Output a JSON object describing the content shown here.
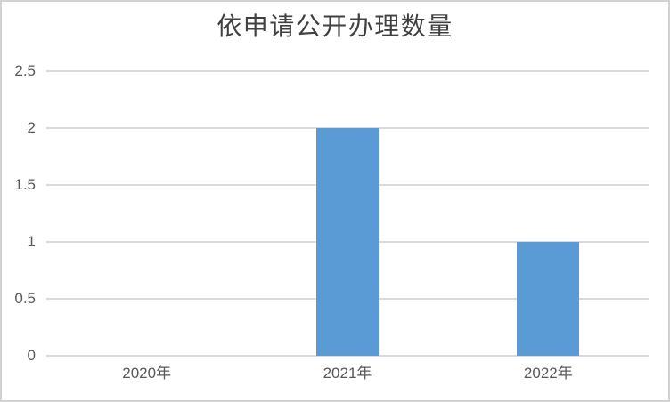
{
  "chart_data": {
    "type": "bar",
    "title": "依申请公开办理数量",
    "categories": [
      "2020年",
      "2021年",
      "2022年"
    ],
    "values": [
      0,
      2,
      1
    ],
    "xlabel": "",
    "ylabel": "",
    "ylim": [
      0,
      2.5
    ],
    "yticks": [
      0,
      0.5,
      1,
      1.5,
      2,
      2.5
    ],
    "ytick_labels": [
      "0",
      "0.5",
      "1",
      "1.5",
      "2",
      "2.5"
    ],
    "grid": "horizontal-only",
    "legend": "none",
    "bar_color": "#5B9BD5"
  },
  "colors": {
    "bar": "#5B9BD5",
    "gridline": "#D9D9D9",
    "axis_text": "#595959",
    "title_text": "#404040",
    "frame_border": "#D2D2D2",
    "background": "#FFFFFF"
  }
}
